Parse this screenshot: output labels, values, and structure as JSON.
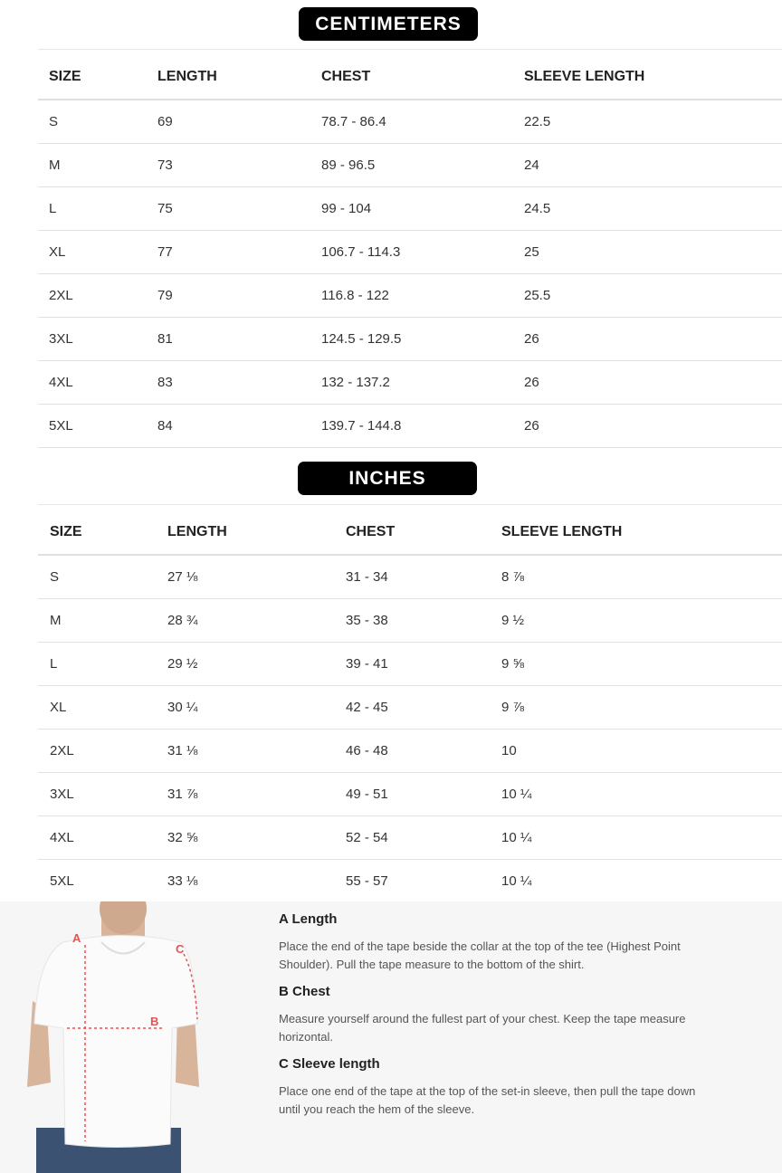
{
  "centimeters": {
    "title": "CENTIMETERS",
    "headers": [
      "SIZE",
      "LENGTH",
      "CHEST",
      "SLEEVE LENGTH"
    ],
    "rows": [
      [
        "S",
        "69",
        "78.7 - 86.4",
        "22.5"
      ],
      [
        "M",
        "73",
        "89 - 96.5",
        "24"
      ],
      [
        "L",
        "75",
        "99 - 104",
        "24.5"
      ],
      [
        "XL",
        "77",
        "106.7 - 114.3",
        "25"
      ],
      [
        "2XL",
        "79",
        "116.8 - 122",
        "25.5"
      ],
      [
        "3XL",
        "81",
        "124.5 - 129.5",
        "26"
      ],
      [
        "4XL",
        "83",
        "132 - 137.2",
        "26"
      ],
      [
        "5XL",
        "84",
        "139.7 - 144.8",
        "26"
      ]
    ]
  },
  "inches": {
    "title": "INCHES",
    "headers": [
      "SIZE",
      "LENGTH",
      "CHEST",
      "SLEEVE LENGTH"
    ],
    "rows": [
      [
        "S",
        "27 ⅛",
        "31 - 34",
        "8 ⅞"
      ],
      [
        "M",
        "28 ¾",
        "35 - 38",
        "9 ½"
      ],
      [
        "L",
        "29 ½",
        "39 - 41",
        "9 ⅝"
      ],
      [
        "XL",
        "30 ¼",
        "42 - 45",
        "9 ⅞"
      ],
      [
        "2XL",
        "31 ⅛",
        "46 - 48",
        "10"
      ],
      [
        "3XL",
        "31 ⅞",
        "49 - 51",
        "10 ¼"
      ],
      [
        "4XL",
        "32 ⅝",
        "52 - 54",
        "10 ¼"
      ],
      [
        "5XL",
        "33 ⅛",
        "55 - 57",
        "10 ¼"
      ]
    ]
  },
  "guide": {
    "diagram_labels": [
      "A",
      "B",
      "C"
    ],
    "marker_color": "#e05555",
    "items": [
      {
        "title": "A Length",
        "text": "Place the end of the tape beside the collar at the top of the tee (Highest Point Shoulder). Pull the tape measure to the bottom of the shirt."
      },
      {
        "title": "B Chest",
        "text": "Measure yourself around the fullest part of your chest. Keep the tape measure horizontal."
      },
      {
        "title": "C Sleeve length",
        "text": "Place one end of the tape at the top of the set-in sleeve, then pull the tape down until you reach the hem of the sleeve."
      }
    ]
  }
}
